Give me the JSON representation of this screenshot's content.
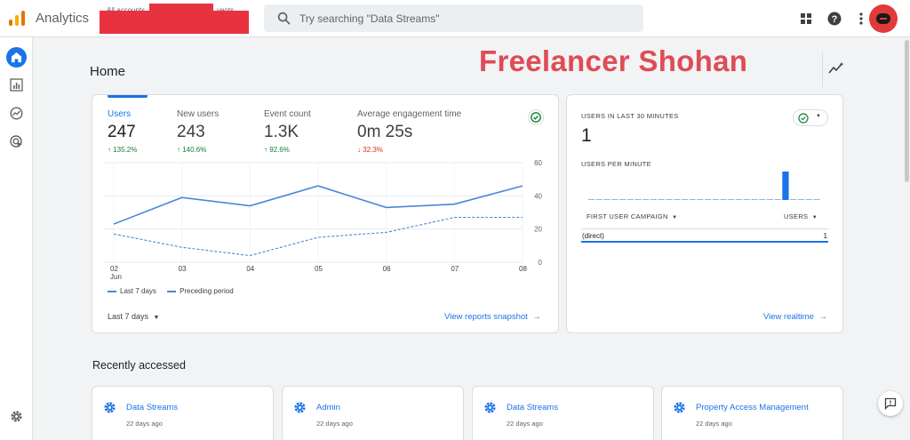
{
  "app": {
    "title": "Analytics",
    "account_label": "All accounts",
    "account_label_suffix": "vents"
  },
  "search": {
    "placeholder": "Try searching \"Data Streams\""
  },
  "icons": {
    "logo": "analytics-logo-icon",
    "apps": "apps-grid-icon",
    "help": "help-icon",
    "more": "more-vert-icon",
    "search": "search-icon"
  },
  "colors": {
    "accent": "#1a73e8",
    "up": "#188038",
    "down": "#d93025",
    "watermark": "#e04b55",
    "redaction": "#e8333f"
  },
  "page": {
    "title": "Home",
    "watermark": "Freelancer Shohan"
  },
  "metrics": [
    {
      "label": "Users",
      "value": "247",
      "change": "135.2%",
      "direction": "up"
    },
    {
      "label": "New users",
      "value": "243",
      "change": "140.6%",
      "direction": "up"
    },
    {
      "label": "Event count",
      "value": "1.3K",
      "change": "92.6%",
      "direction": "up"
    },
    {
      "label": "Average engagement time",
      "value": "0m 25s",
      "change": "32.3%",
      "direction": "down"
    }
  ],
  "chart_data": {
    "type": "line",
    "x": [
      "02",
      "03",
      "04",
      "05",
      "06",
      "07",
      "08"
    ],
    "x_sublabel": "Jun",
    "series": [
      {
        "name": "Last 7 days",
        "values": [
          23,
          39,
          34,
          46,
          33,
          35,
          46
        ],
        "style": "solid"
      },
      {
        "name": "Preceding period",
        "values": [
          17,
          9,
          4,
          15,
          18,
          27,
          27
        ],
        "style": "dashed"
      }
    ],
    "yticks": [
      0,
      20,
      40,
      60
    ],
    "ylim": [
      0,
      60
    ],
    "grid": true,
    "legend": "bottom-left"
  },
  "overview": {
    "range_label": "Last 7 days",
    "link_label": "View reports snapshot"
  },
  "realtime": {
    "caption": "USERS IN LAST 30 MINUTES",
    "value": "1",
    "per_minute_caption": "USERS PER MINUTE",
    "per_minute_values": [
      0,
      0,
      0,
      0,
      0,
      0,
      0,
      0,
      0,
      0,
      0,
      0,
      0,
      0,
      0,
      0,
      0,
      0,
      0,
      0,
      0,
      0,
      0,
      0,
      0,
      1,
      0,
      0,
      0,
      0
    ],
    "col_campaign": "FIRST USER CAMPAIGN",
    "col_users": "USERS",
    "rows": [
      {
        "name": "(direct)",
        "value": "1"
      }
    ],
    "link_label": "View realtime"
  },
  "recent": {
    "title": "Recently accessed",
    "items": [
      {
        "name": "Data Streams",
        "time": "22 days ago"
      },
      {
        "name": "Admin",
        "time": "22 days ago"
      },
      {
        "name": "Data Streams",
        "time": "22 days ago"
      },
      {
        "name": "Property Access Management",
        "time": "22 days ago"
      }
    ]
  }
}
